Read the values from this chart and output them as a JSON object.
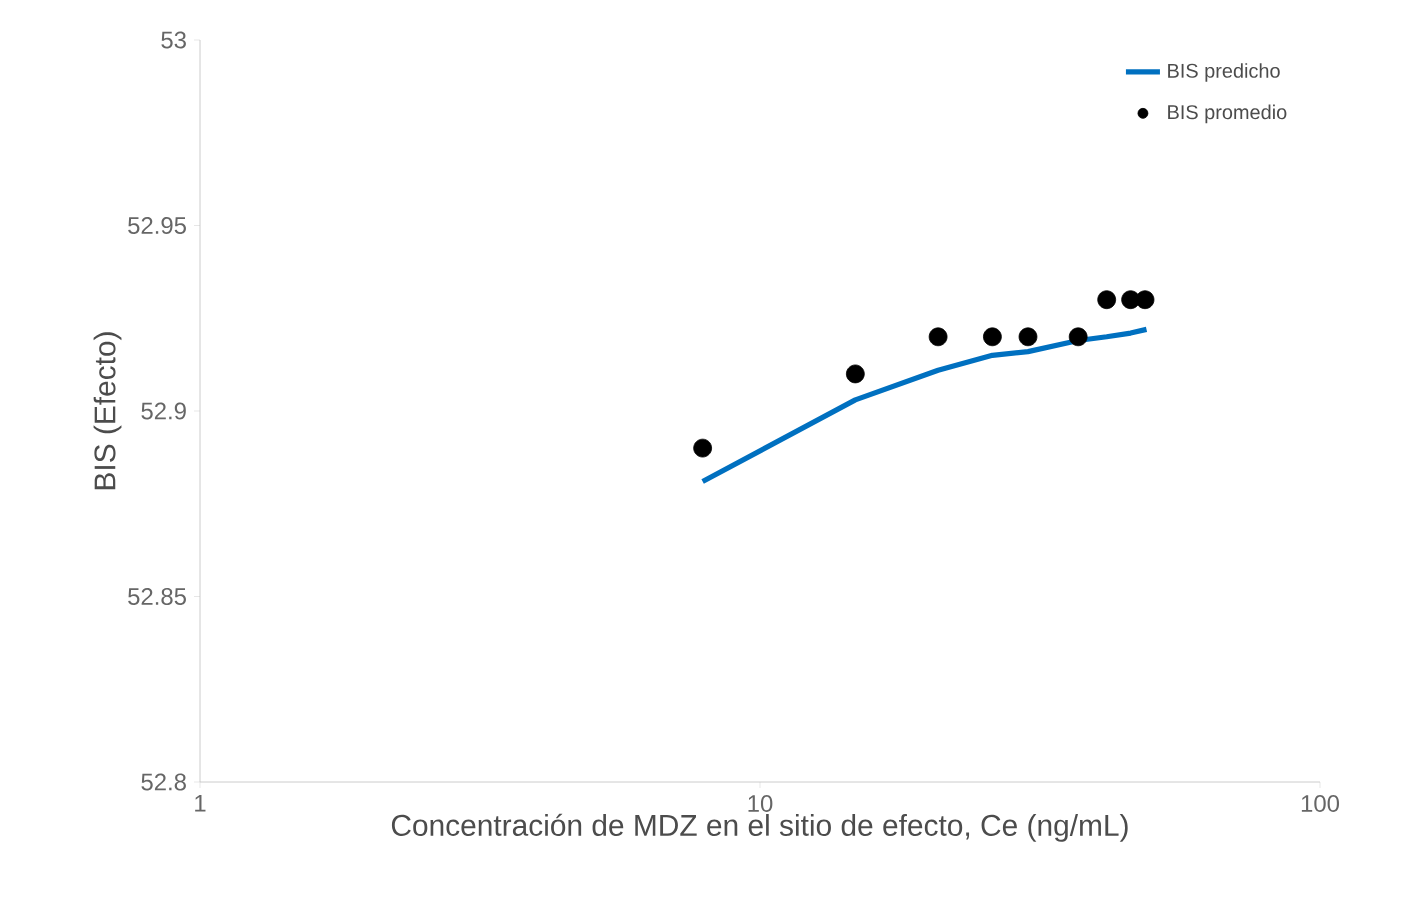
{
  "chart_data": {
    "type": "scatter",
    "xlabel": "Concentración de MDZ en el sitio de efecto, Ce (ng/mL)",
    "ylabel": "BIS (Efecto)",
    "log": "x",
    "xlim": [
      1,
      100
    ],
    "xticks": [
      1,
      10,
      100
    ],
    "ylim": [
      52.8,
      53
    ],
    "yticks": [
      52.8,
      52.85,
      52.9,
      52.95,
      53
    ],
    "grid": false,
    "legend": "top right",
    "series": [
      {
        "name": "BIS predicho",
        "type": "line",
        "color": "#0070c0",
        "marker": "none",
        "line_style": "solid",
        "x": [
          7.9,
          14.8,
          20.8,
          26.0,
          30.1,
          37.0,
          41.6,
          45.9,
          49.0
        ],
        "values": [
          52.881,
          52.903,
          52.911,
          52.915,
          52.916,
          52.919,
          52.92,
          52.921,
          52.922
        ]
      },
      {
        "name": "BIS promedio",
        "color": "#000000",
        "marker": "circle",
        "x": [
          7.9,
          14.8,
          20.8,
          26.0,
          30.1,
          37.0,
          41.6,
          45.9,
          48.7
        ],
        "values": [
          52.89,
          52.91,
          52.92,
          52.92,
          52.92,
          52.92,
          52.93,
          52.93,
          52.93
        ]
      }
    ]
  }
}
